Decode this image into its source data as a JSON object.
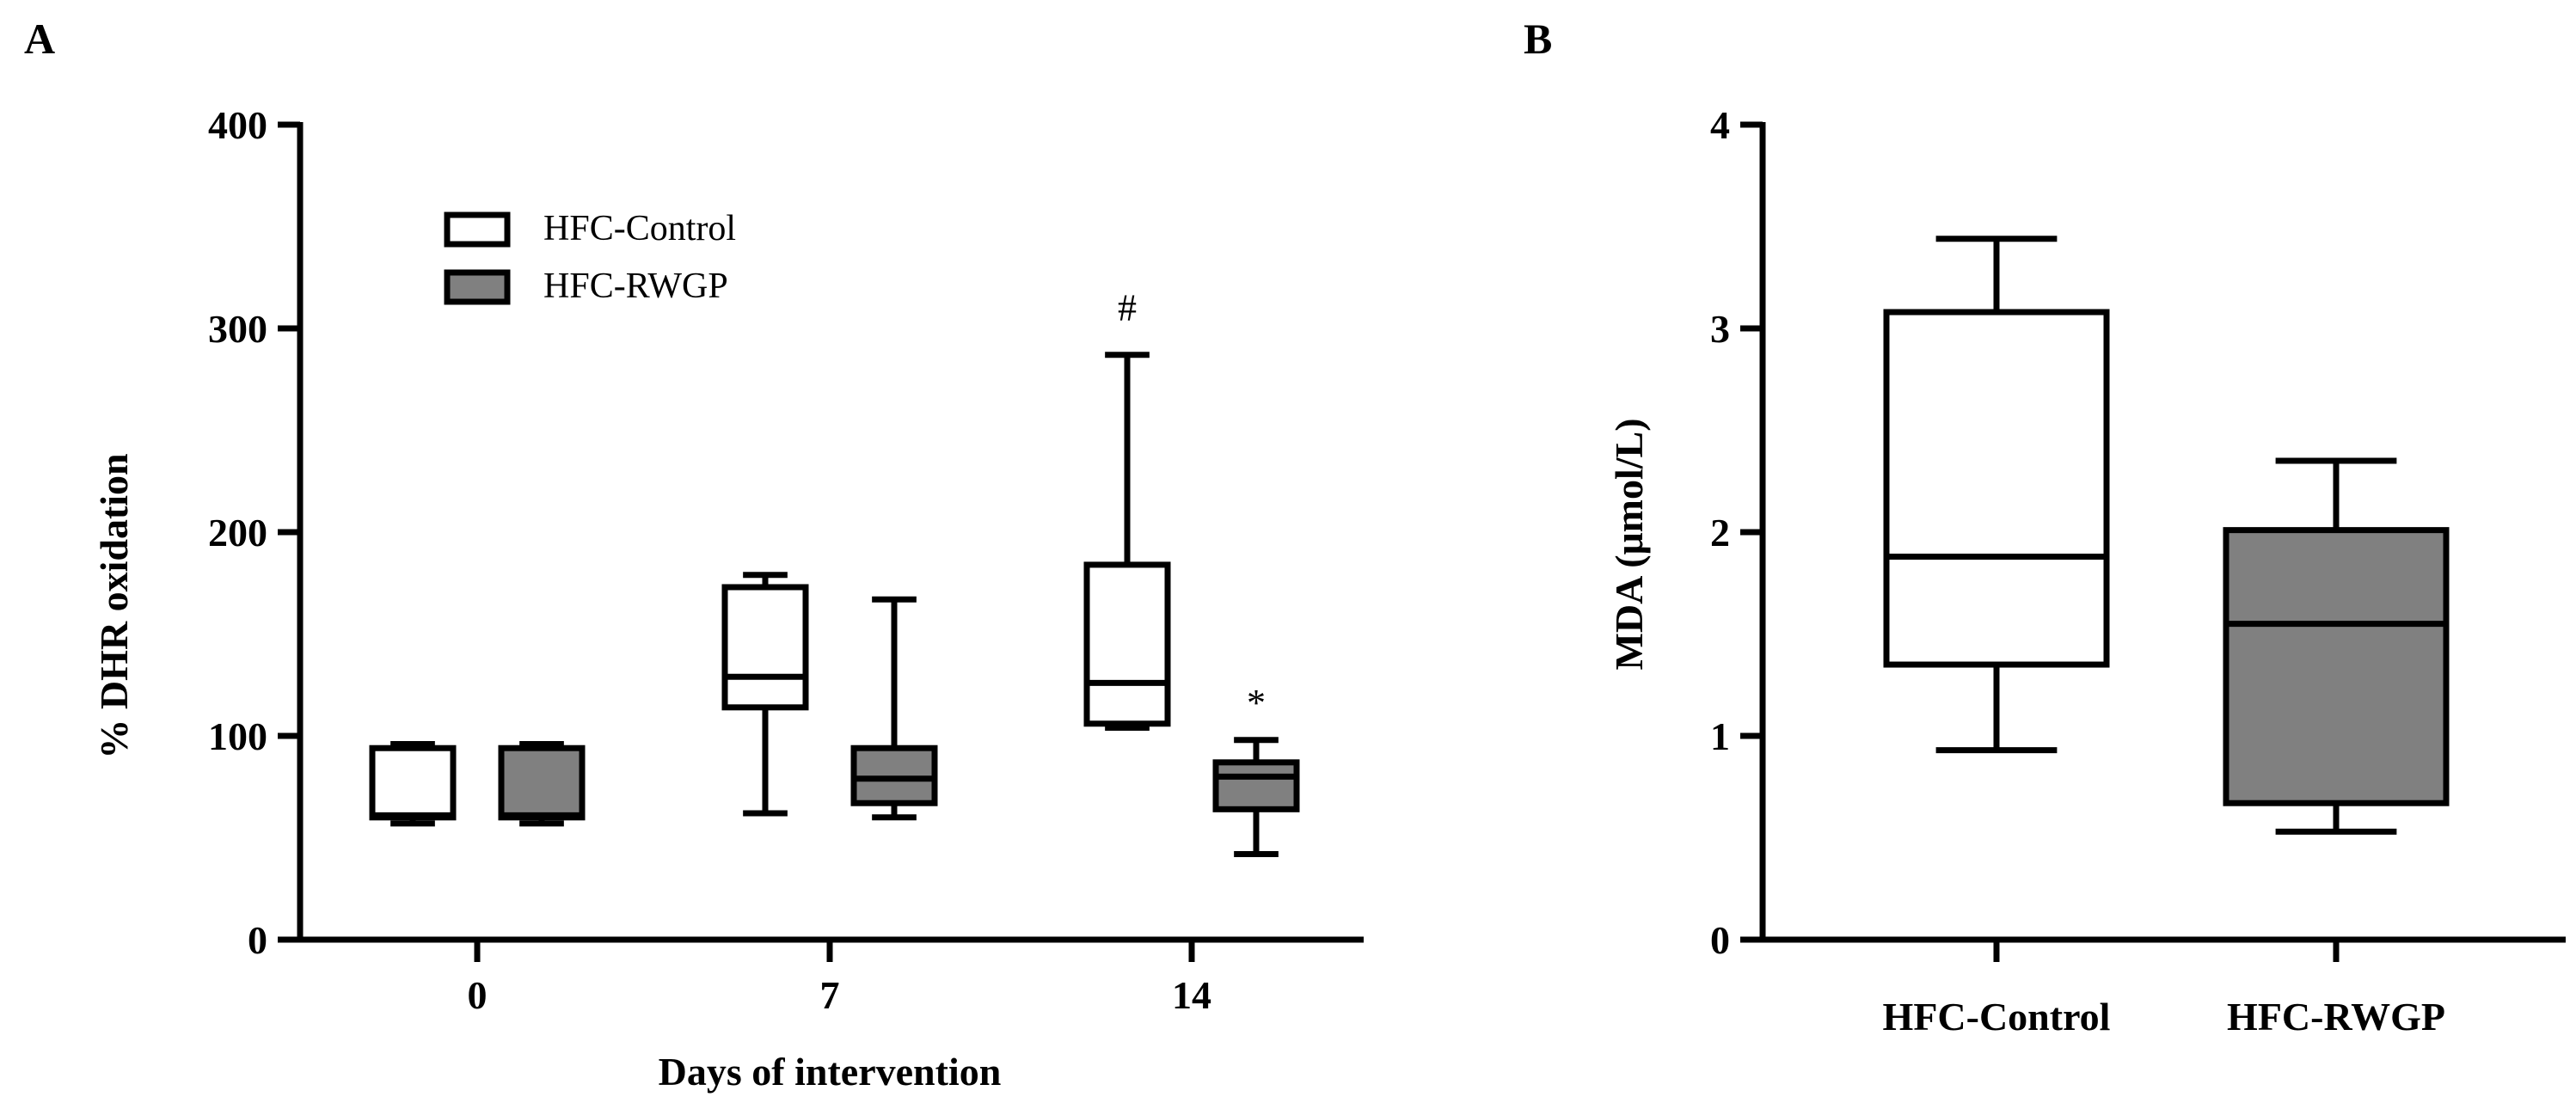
{
  "panel_labels": {
    "a": "A",
    "b": "B"
  },
  "colors": {
    "control_fill": "#ffffff",
    "rwgp_fill": "#808080",
    "line": "#000000"
  },
  "chart_data": [
    {
      "type": "box",
      "panel": "A",
      "xlabel": "Days of intervention",
      "ylabel": "% DHR oxidation",
      "ylim": [
        0,
        400
      ],
      "yticks": [
        0,
        100,
        200,
        300,
        400
      ],
      "ytick_labels": [
        "0",
        "100",
        "200",
        "300",
        "400"
      ],
      "categories": [
        "0",
        "7",
        "14"
      ],
      "legend": {
        "position": "top-left",
        "entries": [
          "HFC-Control",
          "HFC-RWGP"
        ]
      },
      "series": [
        {
          "name": "HFC-Control",
          "boxes": [
            {
              "min": 57,
              "q1": 60,
              "median": 61,
              "q3": 94,
              "max": 96
            },
            {
              "min": 62,
              "q1": 114,
              "median": 129,
              "q3": 173,
              "max": 179
            },
            {
              "min": 104,
              "q1": 106,
              "median": 126,
              "q3": 184,
              "max": 287
            }
          ]
        },
        {
          "name": "HFC-RWGP",
          "boxes": [
            {
              "min": 57,
              "q1": 60,
              "median": 61,
              "q3": 94,
              "max": 96
            },
            {
              "min": 60,
              "q1": 67,
              "median": 79,
              "q3": 94,
              "max": 167
            },
            {
              "min": 42,
              "q1": 64,
              "median": 80,
              "q3": 87,
              "max": 98
            }
          ]
        }
      ],
      "annotations": [
        {
          "text": "#",
          "series": "HFC-Control",
          "category": "14",
          "y": 310
        },
        {
          "text": "*",
          "series": "HFC-RWGP",
          "category": "14",
          "y": 116
        }
      ]
    },
    {
      "type": "box",
      "panel": "B",
      "xlabel": "",
      "ylabel": "MDA (μmol/L)",
      "ylim": [
        0,
        4
      ],
      "yticks": [
        0,
        1,
        2,
        3,
        4
      ],
      "ytick_labels": [
        "0",
        "1",
        "2",
        "3",
        "4"
      ],
      "categories": [
        "HFC-Control",
        "HFC-RWGP"
      ],
      "series": [
        {
          "name": "HFC-Control",
          "boxes": [
            {
              "min": 0.93,
              "q1": 1.35,
              "median": 1.88,
              "q3": 3.08,
              "max": 3.44
            }
          ]
        },
        {
          "name": "HFC-RWGP",
          "boxes": [
            {
              "min": 0.53,
              "q1": 0.67,
              "median": 1.55,
              "q3": 2.01,
              "max": 2.35
            }
          ]
        }
      ]
    }
  ]
}
